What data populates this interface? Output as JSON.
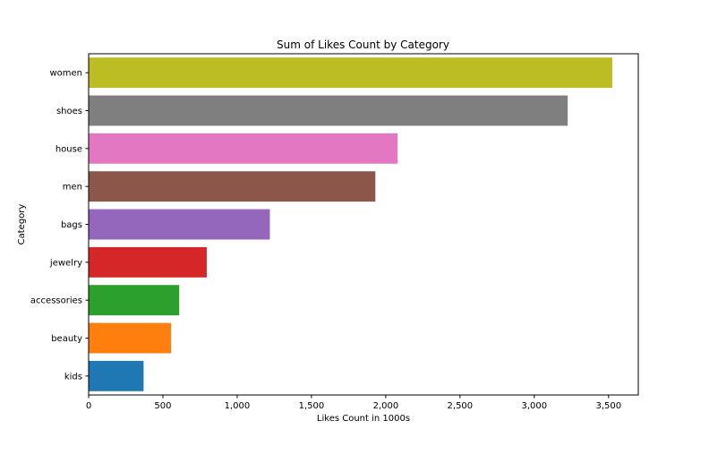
{
  "chart_data": {
    "type": "bar",
    "orientation": "horizontal",
    "title": "Sum of Likes Count by Category",
    "xlabel": "Likes Count in 1000s",
    "ylabel": "Category",
    "categories": [
      "kids",
      "beauty",
      "accessories",
      "jewelry",
      "bags",
      "men",
      "house",
      "shoes",
      "women"
    ],
    "values": [
      370,
      555,
      610,
      795,
      1220,
      1930,
      2080,
      3225,
      3525
    ],
    "colors": [
      "#1f77b4",
      "#ff7f0e",
      "#2ca02c",
      "#d62728",
      "#9467bd",
      "#8c564b",
      "#e377c2",
      "#7f7f7f",
      "#bcbd22"
    ],
    "xlim": [
      0,
      3700
    ],
    "xticks": [
      0,
      500,
      1000,
      1500,
      2000,
      2500,
      3000,
      3500
    ],
    "xtick_labels": [
      "0",
      "500",
      "1,000",
      "1,500",
      "2,000",
      "2,500",
      "3,000",
      "3,500"
    ],
    "grid": false,
    "legend": "none"
  }
}
